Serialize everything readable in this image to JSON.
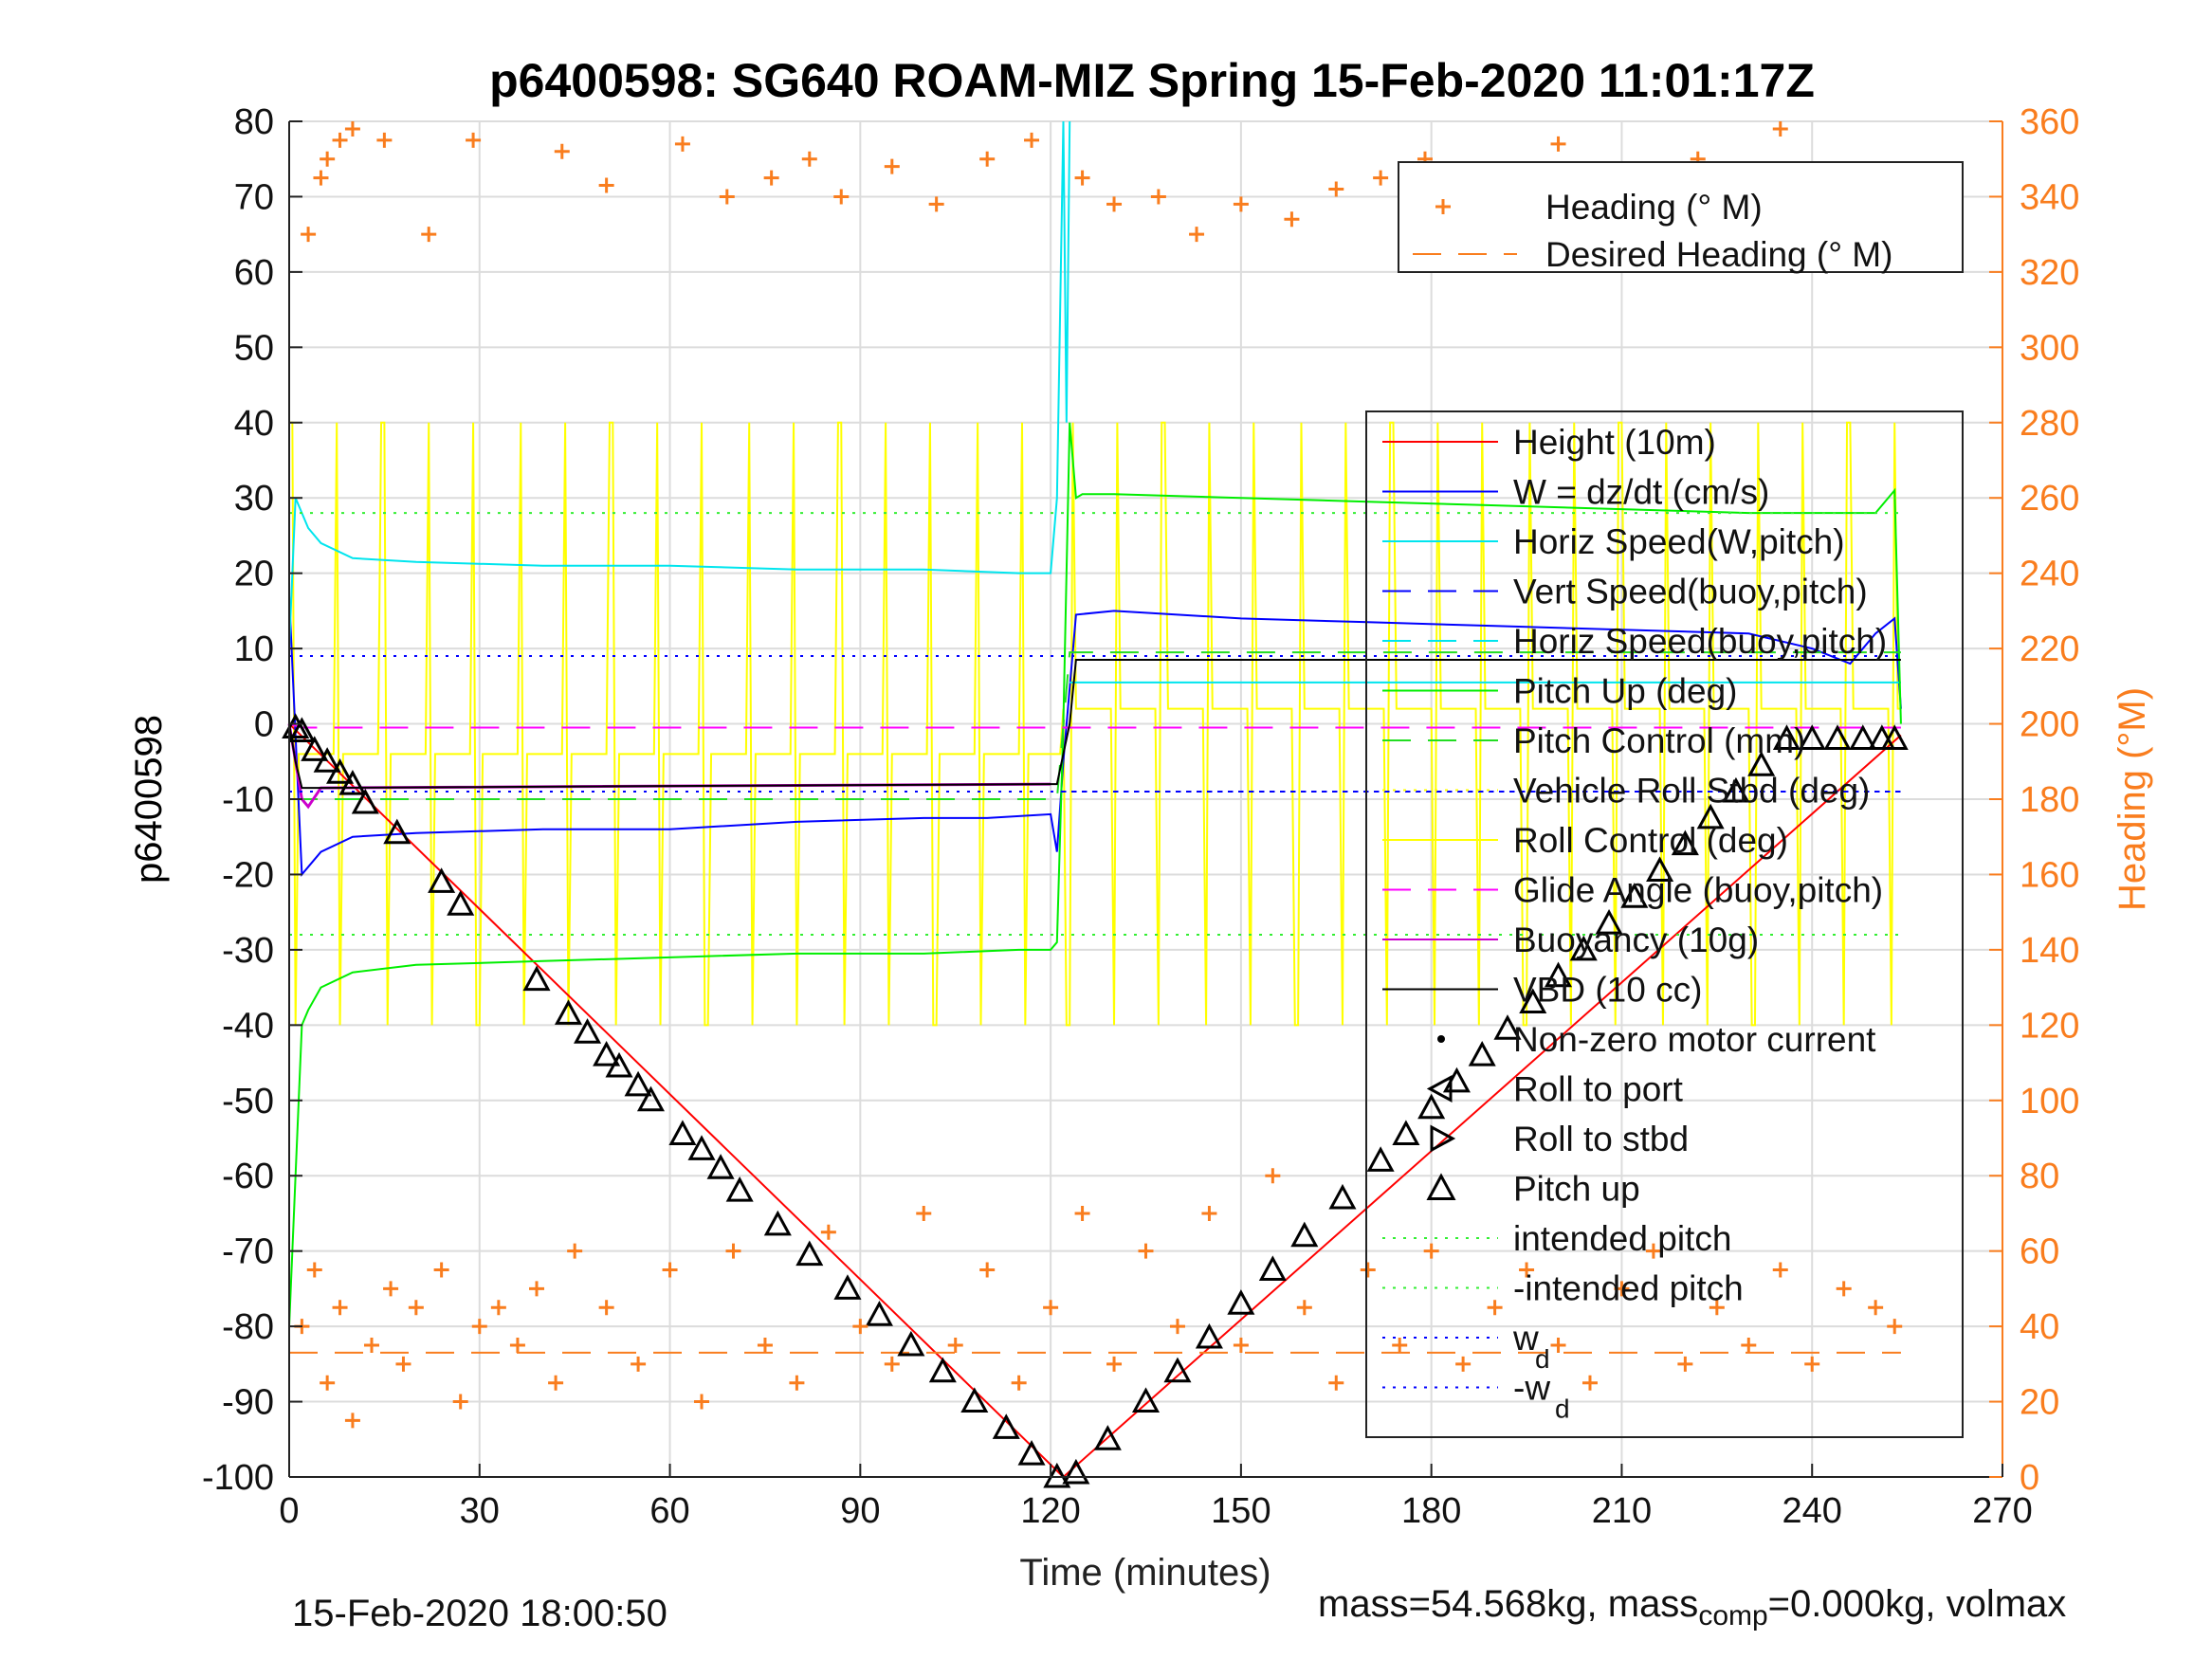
{
  "figure": {
    "title": "p6400598: SG640 ROAM-MIZ Spring 15-Feb-2020 11:01:17Z",
    "footer_left": "15-Feb-2020 18:00:50",
    "footer_right": {
      "pre": "mass=54.568kg, mass",
      "sub": "comp",
      "post": "=0.000kg, volmax"
    }
  },
  "colors": {
    "height": "#ff0000",
    "w": "#0000ff",
    "horiz_speed": "#00e5ee",
    "vert_speed": "#1010d0",
    "pitch_up": "#00ee00",
    "pitch_control": "#22dd22",
    "roll": "#ffff00",
    "glide": "#ff00ff",
    "buoyancy": "#cc00cc",
    "vbd": "#000000",
    "heading": "#f97d1e",
    "intended": "#33ee33",
    "wd": "#0000ff",
    "grid": "#dcdcdc"
  },
  "chart_data": {
    "type": "line",
    "title": "p6400598: SG640 ROAM-MIZ Spring 15-Feb-2020 11:01:17Z",
    "xlabel": "Time (minutes)",
    "ylabel": "p6400598",
    "y2label": "Heading (°M)",
    "xlim": [
      0,
      270
    ],
    "ylim": [
      -100,
      80
    ],
    "y2lim": [
      0,
      360
    ],
    "xticks": [
      0,
      30,
      60,
      90,
      120,
      150,
      180,
      210,
      240,
      270
    ],
    "yticks": [
      80,
      70,
      60,
      50,
      40,
      30,
      20,
      10,
      0,
      -10,
      -20,
      -30,
      -40,
      -50,
      -60,
      -70,
      -80,
      -90,
      -100
    ],
    "y2ticks": [
      360,
      340,
      320,
      300,
      280,
      260,
      240,
      220,
      200,
      180,
      160,
      140,
      120,
      100,
      80,
      60,
      40,
      20,
      0
    ],
    "grid": true,
    "legend_heading": {
      "placement": "top-right",
      "entries": [
        "Heading (° M)",
        "Desired Heading (° M)"
      ]
    },
    "legend_main": {
      "placement": "right",
      "entries": [
        "Height (10m)",
        "W = dz/dt (cm/s)",
        "Horiz Speed(W,pitch)",
        "Vert Speed(buoy,pitch)",
        "Horiz Speed(buoy,pitch)",
        "Pitch Up (deg)",
        "Pitch Control (mm)",
        "Vehicle Roll Stbd (deg)",
        "Roll Control (deg)",
        "Glide Angle (buoy,pitch)",
        "Buoyancy (10g)",
        "VBD (10 cc)",
        "Non-zero motor current",
        "Roll to port",
        "Roll to stbd",
        "Pitch up",
        "intended pitch",
        "-intended pitch",
        "w",
        "-w"
      ],
      "subscripts": {
        "18": "d",
        "19": "d"
      }
    },
    "series": [
      {
        "name": "Height (10m)",
        "x": [
          0,
          122,
          254
        ],
        "y": [
          0,
          -100,
          -1.5
        ]
      },
      {
        "name": "W = dz/dt (cm/s)",
        "x": [
          0,
          2,
          5,
          10,
          20,
          40,
          60,
          80,
          100,
          110,
          120,
          121,
          122,
          124,
          130,
          150,
          170,
          190,
          210,
          230,
          240,
          246,
          250,
          253,
          254
        ],
        "y": [
          17,
          -20,
          -17,
          -15,
          -14.5,
          -14,
          -14,
          -13,
          -12.5,
          -12.5,
          -12,
          -17,
          -5,
          14.5,
          15,
          14,
          13.5,
          13,
          12.5,
          12,
          10,
          8,
          12,
          14,
          2
        ]
      },
      {
        "name": "Horiz Speed(W,pitch)",
        "x": [
          0,
          1,
          3,
          5,
          10,
          20,
          40,
          60,
          80,
          100,
          115,
          120,
          121,
          122,
          122.5,
          123
        ],
        "y": [
          10,
          30,
          26,
          24,
          22,
          21.5,
          21,
          21,
          20.5,
          20.5,
          20,
          20,
          30,
          80,
          40,
          80
        ]
      },
      {
        "name": "Vert Speed(buoy,pitch)",
        "x": [
          122,
          254
        ],
        "y": [
          -9,
          -9
        ]
      },
      {
        "name": "Horiz Speed(buoy,pitch)",
        "x": [
          123,
          254
        ],
        "y": [
          5.5,
          5.5
        ]
      },
      {
        "name": "Pitch Up (deg)",
        "x": [
          0,
          1,
          2,
          3,
          5,
          10,
          20,
          40,
          60,
          80,
          100,
          115,
          120,
          121,
          122,
          123,
          124,
          125,
          130,
          150,
          170,
          190,
          210,
          230,
          240,
          250,
          253,
          254
        ],
        "y": [
          -80,
          -60,
          -40,
          -38,
          -35,
          -33,
          -32,
          -31.5,
          -31,
          -30.5,
          -30.5,
          -30,
          -30,
          -29,
          0,
          40,
          30,
          30.5,
          30.5,
          30,
          29.5,
          29,
          28.5,
          28,
          28,
          28,
          31,
          0
        ]
      },
      {
        "name": "Pitch Control (mm)",
        "x": [
          0,
          4,
          121,
          123,
          254
        ],
        "y": [
          -10,
          -10,
          -10,
          9.5,
          9.5
        ]
      },
      {
        "name": "Glide Angle (buoy,pitch)",
        "x": [
          0,
          2,
          3,
          120,
          254
        ],
        "y": [
          0,
          -0.5,
          -0.5,
          -0.5,
          -0.5
        ]
      },
      {
        "name": "Buoyancy (10g)",
        "x": [
          0,
          2,
          3,
          5,
          120
        ],
        "y": [
          0,
          -10,
          -11,
          -8.5,
          -8
        ]
      },
      {
        "name": "VBD (10 cc)",
        "x": [
          0,
          1,
          2,
          5,
          120,
          121,
          123,
          124,
          254
        ],
        "y": [
          0,
          -5,
          -8.5,
          -8.5,
          -8,
          -8,
          0,
          8.5,
          8.5
        ]
      },
      {
        "name": "intended pitch",
        "x": [
          0,
          254
        ],
        "y": [
          28,
          28
        ]
      },
      {
        "name": "-intended pitch",
        "x": [
          0,
          254
        ],
        "y": [
          -28,
          -28
        ]
      },
      {
        "name": "w_d",
        "x": [
          0,
          254
        ],
        "y": [
          9,
          9
        ]
      },
      {
        "name": "-w_d",
        "x": [
          0,
          254
        ],
        "y": [
          -9,
          -9
        ]
      },
      {
        "name": "Desired Heading (° M)",
        "x": [
          0,
          254
        ],
        "y2": [
          33,
          33
        ]
      },
      {
        "name": "Pitch up",
        "marker": "triangle",
        "x": [
          1,
          2,
          4,
          6,
          8,
          10,
          12,
          17,
          24,
          27,
          39,
          44,
          47,
          50,
          52,
          55,
          57,
          62,
          65,
          68,
          71,
          77,
          82,
          88,
          93,
          98,
          103,
          108,
          113,
          117,
          121,
          124,
          129,
          135,
          140,
          145,
          150,
          155,
          160,
          166,
          172,
          176,
          180,
          184,
          188,
          192,
          196,
          200,
          204,
          208,
          212,
          216,
          220,
          224,
          228,
          232,
          236,
          240,
          244,
          248,
          251,
          253
        ],
        "y": [
          -0.5,
          -1,
          -3.5,
          -5,
          -6.5,
          -8,
          -10.5,
          -14.5,
          -21,
          -24,
          -34,
          -38.5,
          -41,
          -44,
          -45.5,
          -48,
          -50,
          -54.5,
          -56.5,
          -59,
          -62,
          -66.5,
          -70.5,
          -75,
          -78.5,
          -82.5,
          -86,
          -90,
          -93.5,
          -97,
          -100,
          -99.5,
          -95,
          -90,
          -86,
          -81.5,
          -77,
          -72.5,
          -68,
          -63,
          -58,
          -54.5,
          -51,
          -47.5,
          -44,
          -40.5,
          -37,
          -33.5,
          -30,
          -26.5,
          -23,
          -19.5,
          -16,
          -12.5,
          -9,
          -5.5,
          -2,
          -2,
          -2,
          -2,
          -2,
          -2
        ]
      },
      {
        "name": "Heading (° M) upper cluster",
        "marker": "plus",
        "x": [
          3,
          5,
          6,
          8,
          10,
          15,
          22,
          29,
          43,
          50,
          62,
          69,
          76,
          82,
          87,
          95,
          102,
          110,
          117,
          125,
          130,
          137,
          143,
          150,
          158,
          165,
          172,
          179,
          186,
          194,
          200,
          207,
          214,
          222,
          228,
          235
        ],
        "y2": [
          330,
          345,
          350,
          355,
          358,
          355,
          330,
          355,
          352,
          343,
          354,
          340,
          345,
          350,
          340,
          348,
          338,
          350,
          355,
          345,
          338,
          340,
          330,
          338,
          334,
          342,
          345,
          350,
          346,
          338,
          354,
          342,
          340,
          350,
          345,
          358
        ]
      },
      {
        "name": "Heading (° M) lower cluster",
        "marker": "plus",
        "x": [
          2,
          4,
          6,
          8,
          10,
          13,
          16,
          18,
          20,
          24,
          27,
          30,
          33,
          36,
          39,
          42,
          45,
          50,
          55,
          60,
          65,
          70,
          75,
          80,
          85,
          90,
          95,
          100,
          105,
          110,
          115,
          120,
          125,
          130,
          135,
          140,
          145,
          150,
          155,
          160,
          165,
          170,
          175,
          180,
          185,
          190,
          195,
          200,
          205,
          210,
          215,
          220,
          225,
          230,
          235,
          240,
          245,
          250,
          253
        ],
        "y2": [
          40,
          55,
          25,
          45,
          15,
          35,
          50,
          30,
          45,
          55,
          20,
          40,
          45,
          35,
          50,
          25,
          60,
          45,
          30,
          55,
          20,
          60,
          35,
          25,
          65,
          40,
          30,
          70,
          35,
          55,
          25,
          45,
          70,
          30,
          60,
          40,
          70,
          35,
          80,
          45,
          25,
          55,
          35,
          60,
          30,
          45,
          55,
          35,
          25,
          50,
          60,
          30,
          45,
          35,
          55,
          30,
          50,
          45,
          40
        ]
      }
    ]
  }
}
